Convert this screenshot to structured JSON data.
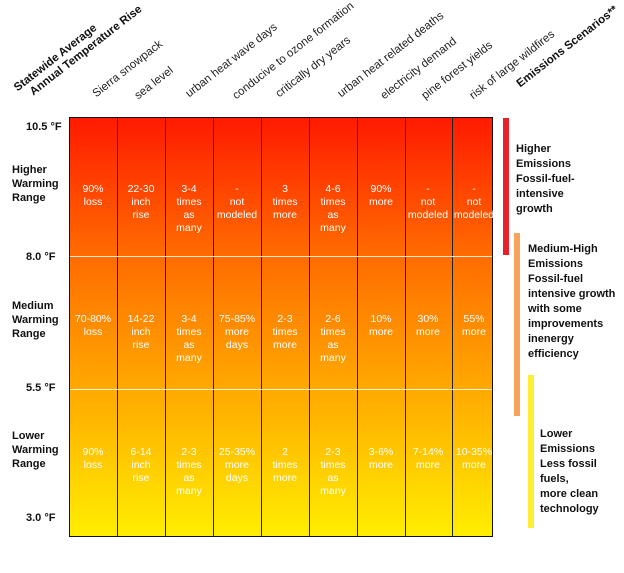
{
  "header": {
    "axis_title_line1": "Statewide Average",
    "axis_title_line2": "Annual Temperature Rise",
    "columns": [
      "Sierra snowpack",
      "sea level",
      "urban heat wave days",
      "conducive to ozone formation",
      "critically dry years",
      "urban heat related deaths",
      "electricity demand",
      "pine forest yields",
      "risk of large wildfires"
    ],
    "scenarios_title": "Emissions Scenarios**"
  },
  "temperatures": [
    "10.5 °F",
    "8.0 °F",
    "5.5 °F",
    "3.0 °F"
  ],
  "ranges": [
    {
      "label": "Higher\nWarming\nRange",
      "cells": [
        "90%\nloss",
        "22-30\ninch\nrise",
        "3-4\ntimes\nas\nmany",
        "-\nnot\nmodeled",
        "3\ntimes\nmore",
        "4-6\ntimes\nas\nmany",
        "90%\nmore",
        "-\nnot\nmodeled",
        "-\nnot\nmodeled"
      ]
    },
    {
      "label": "Medium\nWarming\nRange",
      "cells": [
        "70-80%\nloss",
        "14-22\ninch\nrise",
        "3-4\ntimes\nas\nmany",
        "75-85%\nmore\ndays",
        "2-3\ntimes\nmore",
        "2-6\ntimes\nas\nmany",
        "10%\nmore",
        "30%\nmore",
        "55%\nmore"
      ]
    },
    {
      "label": "Lower\nWarming\nRange",
      "cells": [
        "90%\nloss",
        "6-14\ninch\nrise",
        "2-3\ntimes\nas\nmany",
        "25-35%\nmore\ndays",
        "2\ntimes\nmore",
        "2-3\ntimes\nas\nmany",
        "3-6%\nmore",
        "7-14%\nmore",
        "10-35%\nmore"
      ]
    }
  ],
  "scenarios": [
    {
      "label": "Higher\nEmissions\nFossil-fuel-\nintensive\ngrowth",
      "color": "#e8202a"
    },
    {
      "label": "Medium-High\nEmissions\nFossil-fuel\nintensive growth\nwith some\nimprovements\ninenergy\nefficiency",
      "color": "#f7a35c"
    },
    {
      "label": "Lower\nEmissions\nLess fossil\nfuels,\nmore clean\ntechnology",
      "color": "#ffee33"
    }
  ]
}
